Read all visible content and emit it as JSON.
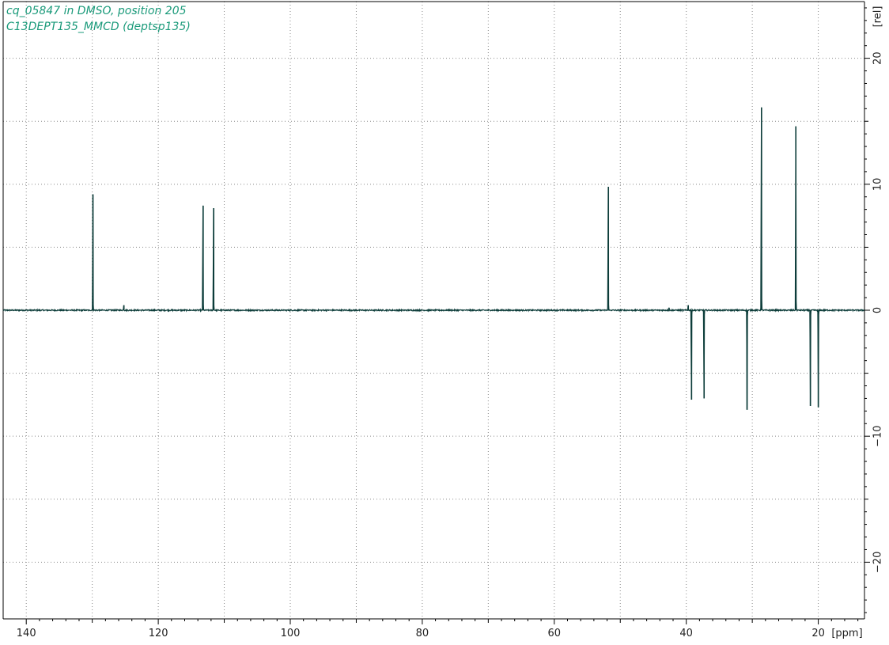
{
  "title_lines": [
    "cq_05847 in DMSO, position 205",
    "C13DEPT135_MMCD (deptsp135)"
  ],
  "colors": {
    "title": "#1a9a7a",
    "spectrum": "#0d3d3a",
    "grid": "#8a8a8a",
    "axis": "#000000"
  },
  "chart_data": {
    "type": "line",
    "title": "cq_05847 in DMSO, position 205",
    "subtitle": "C13DEPT135_MMCD (deptsp135)",
    "xlabel": "[ppm]",
    "ylabel": "[rel]",
    "xlim": [
      143.5,
      13.0
    ],
    "ylim": [
      -24.5,
      24.5
    ],
    "x_reversed": true,
    "x_ticks": [
      140,
      120,
      100,
      80,
      60,
      40,
      20
    ],
    "y_ticks": [
      20,
      10,
      0,
      -10,
      -20
    ],
    "y_tick_labels": [
      "20",
      "10",
      "0",
      "−10",
      "−20"
    ],
    "grid": true,
    "baseline_noise": 0.1,
    "peaks": [
      {
        "ppm": 129.9,
        "intensity": 9.2
      },
      {
        "ppm": 125.2,
        "intensity": 0.4
      },
      {
        "ppm": 113.2,
        "intensity": 8.3
      },
      {
        "ppm": 111.6,
        "intensity": 8.1
      },
      {
        "ppm": 51.8,
        "intensity": 9.8
      },
      {
        "ppm": 42.6,
        "intensity": 0.2
      },
      {
        "ppm": 39.7,
        "intensity": 0.4
      },
      {
        "ppm": 39.2,
        "intensity": -7.1
      },
      {
        "ppm": 37.3,
        "intensity": -7.0
      },
      {
        "ppm": 30.8,
        "intensity": -7.9
      },
      {
        "ppm": 28.6,
        "intensity": 16.1
      },
      {
        "ppm": 23.4,
        "intensity": 14.6
      },
      {
        "ppm": 21.2,
        "intensity": -7.6
      },
      {
        "ppm": 20.0,
        "intensity": -7.7
      }
    ]
  }
}
